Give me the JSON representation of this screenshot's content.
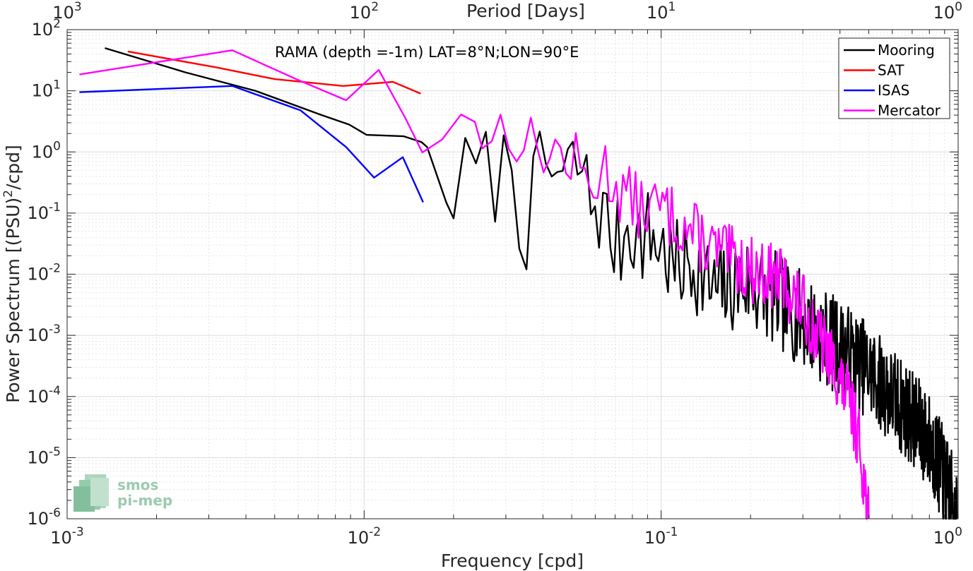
{
  "chart_data": {
    "type": "line",
    "xscale": "log",
    "yscale": "log",
    "xlim": [
      0.001,
      1
    ],
    "ylim": [
      1e-06,
      100
    ],
    "grid": true,
    "minor_grid": true,
    "xlabel": "Frequency [cpd]",
    "ylabel_parts": [
      "Power Spectrum [(PSU)",
      "2",
      "/cpd]"
    ],
    "top_axis_label": "Period [Days]",
    "annotation": "RAMA (depth =-1m) LAT=8°N;LON=90°E",
    "legend_position": "top-right",
    "x_ticks": [
      {
        "value": 0.001,
        "base": "10",
        "exp": "-3"
      },
      {
        "value": 0.01,
        "base": "10",
        "exp": "-2"
      },
      {
        "value": 0.1,
        "base": "10",
        "exp": "-1"
      },
      {
        "value": 1,
        "base": "10",
        "exp": "0"
      }
    ],
    "y_ticks": [
      {
        "value": 1e-06,
        "base": "10",
        "exp": "-6"
      },
      {
        "value": 1e-05,
        "base": "10",
        "exp": "-5"
      },
      {
        "value": 0.0001,
        "base": "10",
        "exp": "-4"
      },
      {
        "value": 0.001,
        "base": "10",
        "exp": "-3"
      },
      {
        "value": 0.01,
        "base": "10",
        "exp": "-2"
      },
      {
        "value": 0.1,
        "base": "10",
        "exp": "-1"
      },
      {
        "value": 1,
        "base": "10",
        "exp": "0"
      },
      {
        "value": 10,
        "base": "10",
        "exp": "1"
      },
      {
        "value": 100,
        "base": "10",
        "exp": "2"
      }
    ],
    "top_ticks": [
      {
        "value": 0.001,
        "base": "10",
        "exp": "3"
      },
      {
        "value": 0.01,
        "base": "10",
        "exp": "2"
      },
      {
        "value": 0.1,
        "base": "10",
        "exp": "1"
      },
      {
        "value": 1,
        "base": "10",
        "exp": "0"
      }
    ],
    "series": [
      {
        "name": "Mooring",
        "color": "#000000",
        "noise": {
          "from": 0.02,
          "amp": 0.8,
          "seed": 7
        },
        "points": [
          [
            0.00134,
            50
          ],
          [
            0.0025,
            20
          ],
          [
            0.0043,
            10
          ],
          [
            0.0072,
            4
          ],
          [
            0.0089,
            2.8
          ],
          [
            0.0102,
            1.9
          ],
          [
            0.0136,
            1.8
          ],
          [
            0.0156,
            1.45
          ],
          [
            0.0163,
            1.2
          ],
          [
            0.0189,
            0.15
          ],
          [
            0.0205,
            0.25
          ],
          [
            0.0216,
            0.36
          ],
          [
            0.025,
            0.47
          ],
          [
            0.0283,
            0.36
          ],
          [
            0.0315,
            0.86
          ],
          [
            0.0345,
            0.042
          ],
          [
            0.0375,
            0.17
          ],
          [
            0.04,
            0.63
          ],
          [
            0.044,
            0.42
          ],
          [
            0.047,
            0.32
          ],
          [
            0.051,
            0.57
          ],
          [
            0.054,
            0.58
          ],
          [
            0.057,
            0.17
          ],
          [
            0.062,
            0.12
          ],
          [
            0.066,
            0.056
          ],
          [
            0.072,
            0.025
          ],
          [
            0.078,
            0.09
          ],
          [
            0.083,
            0.035
          ],
          [
            0.09,
            0.045
          ],
          [
            0.1,
            0.03
          ],
          [
            0.11,
            0.012
          ],
          [
            0.13,
            0.015
          ],
          [
            0.15,
            0.005
          ],
          [
            0.19,
            0.0075
          ],
          [
            0.24,
            0.004
          ],
          [
            0.3,
            0.0018
          ],
          [
            0.36,
            0.0009
          ],
          [
            0.44,
            0.00045
          ],
          [
            0.52,
            0.00022
          ],
          [
            0.6,
            0.0001
          ],
          [
            0.7,
            4.5e-05
          ],
          [
            0.8,
            1.8e-05
          ],
          [
            0.88,
            6e-06
          ],
          [
            0.94,
            2.5e-06
          ],
          [
            0.99,
            1e-06
          ]
        ]
      },
      {
        "name": "SAT",
        "color": "#ff0000",
        "points": [
          [
            0.0016,
            44
          ],
          [
            0.0032,
            24
          ],
          [
            0.005,
            15.5
          ],
          [
            0.0085,
            12
          ],
          [
            0.0125,
            14
          ],
          [
            0.0155,
            9
          ]
        ]
      },
      {
        "name": "ISAS",
        "color": "#0000ff",
        "points": [
          [
            0.0011,
            9.5
          ],
          [
            0.0036,
            12
          ],
          [
            0.0061,
            4.8
          ],
          [
            0.0087,
            1.2
          ],
          [
            0.0108,
            0.38
          ],
          [
            0.0135,
            0.82
          ],
          [
            0.0158,
            0.15
          ]
        ]
      },
      {
        "name": "Mercator",
        "color": "#ff00ff",
        "noise": {
          "from": 0.025,
          "amp": 0.55,
          "seed": 13
        },
        "points": [
          [
            0.0011,
            18.5
          ],
          [
            0.0036,
            46
          ],
          [
            0.006,
            15
          ],
          [
            0.0087,
            7
          ],
          [
            0.0112,
            22
          ],
          [
            0.0138,
            3.5
          ],
          [
            0.0157,
            0.98
          ],
          [
            0.0183,
            1.6
          ],
          [
            0.0212,
            4.1
          ],
          [
            0.0236,
            3.1
          ],
          [
            0.0265,
            1.55
          ],
          [
            0.029,
            2.4
          ],
          [
            0.0312,
            2.8
          ],
          [
            0.0353,
            1.4
          ],
          [
            0.0377,
            0.95
          ],
          [
            0.041,
            1.3
          ],
          [
            0.047,
            0.75
          ],
          [
            0.052,
            0.6
          ],
          [
            0.057,
            0.25
          ],
          [
            0.064,
            0.55
          ],
          [
            0.075,
            0.2
          ],
          [
            0.085,
            0.12
          ],
          [
            0.1,
            0.12
          ],
          [
            0.12,
            0.06
          ],
          [
            0.15,
            0.025
          ],
          [
            0.2,
            0.012
          ],
          [
            0.25,
            0.0085
          ],
          [
            0.3,
            0.003
          ],
          [
            0.33,
            0.0011
          ],
          [
            0.37,
            0.00045
          ],
          [
            0.4,
            0.00018
          ],
          [
            0.43,
            8e-05
          ],
          [
            0.46,
            2.5e-05
          ],
          [
            0.48,
            5e-06
          ],
          [
            0.5,
            1e-06
          ]
        ]
      }
    ]
  },
  "logo": {
    "line1": "smos",
    "line2": "pi-mep",
    "color": "#8ac3a2"
  }
}
